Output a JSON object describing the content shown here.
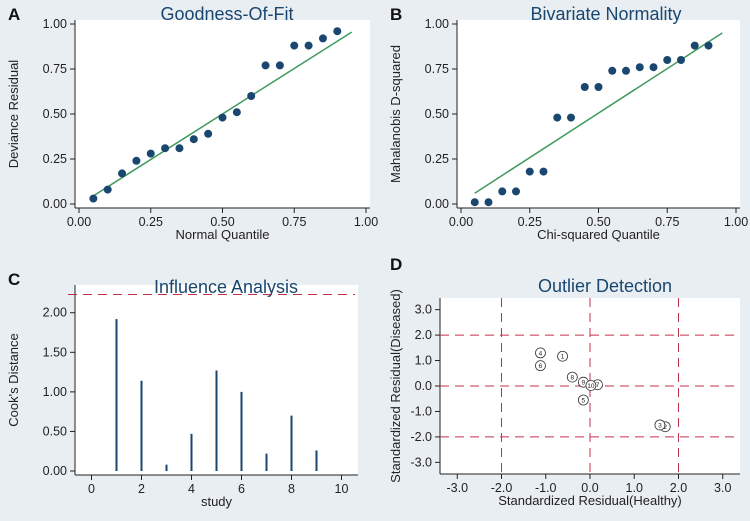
{
  "chart_data": [
    {
      "id": "A",
      "panel": "A",
      "type": "scatter",
      "title": "Goodness-Of-Fit",
      "xlabel": "Normal Quantile",
      "ylabel": "Deviance Residual",
      "xlim": [
        0,
        1
      ],
      "ylim": [
        0,
        1
      ],
      "xticks": [
        "0.00",
        "0.25",
        "0.50",
        "0.75",
        "1.00"
      ],
      "yticks": [
        "0.00",
        "0.25",
        "0.50",
        "0.75",
        "1.00"
      ],
      "fit_line": [
        [
          0.05,
          0.045
        ],
        [
          0.95,
          0.955
        ]
      ],
      "points": [
        [
          0.05,
          0.03
        ],
        [
          0.1,
          0.08
        ],
        [
          0.15,
          0.17
        ],
        [
          0.2,
          0.24
        ],
        [
          0.25,
          0.28
        ],
        [
          0.3,
          0.31
        ],
        [
          0.35,
          0.31
        ],
        [
          0.4,
          0.36
        ],
        [
          0.45,
          0.39
        ],
        [
          0.5,
          0.48
        ],
        [
          0.55,
          0.51
        ],
        [
          0.6,
          0.6
        ],
        [
          0.65,
          0.77
        ],
        [
          0.7,
          0.77
        ],
        [
          0.75,
          0.88
        ],
        [
          0.8,
          0.88
        ],
        [
          0.85,
          0.92
        ],
        [
          0.9,
          0.96
        ]
      ]
    },
    {
      "id": "B",
      "panel": "B",
      "type": "scatter",
      "title": "Bivariate Normality",
      "xlabel": "Chi-squared Quantile",
      "ylabel": "Mahalanobis D-squared",
      "xlim": [
        0,
        1
      ],
      "ylim": [
        0,
        1
      ],
      "xticks": [
        "0.00",
        "0.25",
        "0.50",
        "0.75",
        "1.00"
      ],
      "yticks": [
        "0.00",
        "0.25",
        "0.50",
        "0.75",
        "1.00"
      ],
      "fit_line": [
        [
          0.05,
          0.06
        ],
        [
          0.95,
          0.95
        ]
      ],
      "points": [
        [
          0.05,
          0.01
        ],
        [
          0.1,
          0.01
        ],
        [
          0.15,
          0.07
        ],
        [
          0.2,
          0.07
        ],
        [
          0.25,
          0.18
        ],
        [
          0.3,
          0.18
        ],
        [
          0.35,
          0.48
        ],
        [
          0.4,
          0.48
        ],
        [
          0.45,
          0.65
        ],
        [
          0.5,
          0.65
        ],
        [
          0.55,
          0.74
        ],
        [
          0.6,
          0.74
        ],
        [
          0.65,
          0.76
        ],
        [
          0.7,
          0.76
        ],
        [
          0.75,
          0.8
        ],
        [
          0.8,
          0.8
        ],
        [
          0.85,
          0.88
        ],
        [
          0.9,
          0.88
        ]
      ]
    },
    {
      "id": "C",
      "panel": "C",
      "type": "bar",
      "title": "Influence Analysis",
      "xlabel": "study",
      "ylabel": "Cook's Distance",
      "xlim": [
        -0.5,
        10.5
      ],
      "ylim": [
        0,
        2.3
      ],
      "xticks": [
        "0",
        "2",
        "4",
        "6",
        "8",
        "10"
      ],
      "yticks": [
        "0.00",
        "0.50",
        "1.00",
        "1.50",
        "2.00"
      ],
      "threshold": 2.23,
      "x": [
        1,
        2,
        3,
        4,
        5,
        6,
        7,
        8,
        9
      ],
      "values": [
        1.92,
        1.14,
        0.08,
        0.47,
        1.27,
        1.0,
        0.22,
        0.7,
        0.26
      ]
    },
    {
      "id": "D",
      "panel": "D",
      "type": "scatter",
      "title": "Outlier Detection",
      "xlabel": "Standardized Residual(Healthy)",
      "ylabel": "Standardized Residual(Diseased)",
      "xlim": [
        -3.3,
        3.3
      ],
      "ylim": [
        -3.3,
        3.3
      ],
      "xticks": [
        "-3.0",
        "-2.0",
        "-1.0",
        "0.0",
        "1.0",
        "2.0",
        "3.0"
      ],
      "yticks": [
        "-3.0",
        "-2.0",
        "-1.0",
        "0.0",
        "1.0",
        "2.0",
        "3.0"
      ],
      "ref_lines_x": [
        -2,
        0,
        2
      ],
      "ref_lines_y": [
        -2,
        0,
        2
      ],
      "points": [
        {
          "label": "1",
          "x": -0.62,
          "y": 1.17
        },
        {
          "label": "2",
          "x": 1.7,
          "y": -1.6
        },
        {
          "label": "3",
          "x": 1.58,
          "y": -1.53
        },
        {
          "label": "4",
          "x": -1.12,
          "y": 1.3
        },
        {
          "label": "5",
          "x": -0.15,
          "y": -0.55
        },
        {
          "label": "6",
          "x": -1.12,
          "y": 0.8
        },
        {
          "label": "7",
          "x": 0.17,
          "y": 0.05
        },
        {
          "label": "8",
          "x": -0.4,
          "y": 0.35
        },
        {
          "label": "9",
          "x": -0.15,
          "y": 0.15
        },
        {
          "label": "10",
          "x": 0.02,
          "y": 0.02
        }
      ]
    }
  ],
  "colors": {
    "background": "#e9eef3",
    "plot_background": "#ffffff",
    "title": "#1a476f",
    "marker": "#1a476f",
    "fit_line": "#3f9a5e",
    "reference": "#c0304a",
    "axis": "#222222"
  }
}
